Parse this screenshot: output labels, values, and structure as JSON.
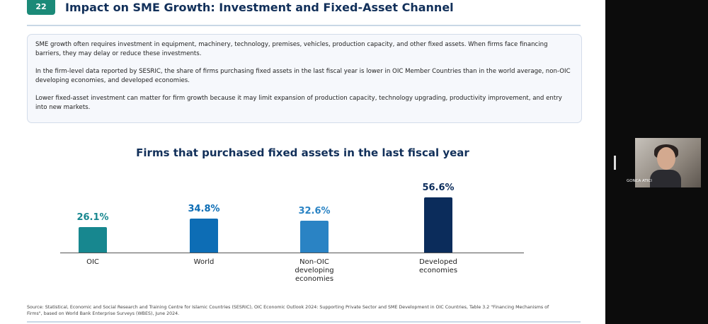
{
  "slide": {
    "number": "22",
    "title": "Impact on SME Growth: Investment and Fixed-Asset Channel",
    "paragraphs": [
      "SME growth often requires investment in equipment, machinery, technology, premises, vehicles, production capacity, and other fixed assets. When firms face financing barriers, they may delay or reduce these investments.",
      "In the firm-level data reported by SESRIC, the share of firms purchasing fixed assets in the last fiscal year is lower in OIC Member Countries than in the world average, non-OIC developing economies, and developed economies.",
      "Lower fixed-asset investment can matter for firm growth because it may limit expansion of production capacity, technology upgrading, productivity improvement, and entry into new markets."
    ],
    "source": "Source: Statistical, Economic and Social Research and Training Centre for Islamic Countries (SESRIC), OIC Economic Outlook 2024: Supporting Private Sector and SME Development in OIC Countries, Table 3.2 \"Financing Mechanisms of Firms\", based on World Bank Enterprise Surveys (WBES), June 2024."
  },
  "chart_data": {
    "type": "bar",
    "title": "Firms that purchased fixed assets in the last fiscal year",
    "categories": [
      "OIC",
      "World",
      "Non-OIC developing economies",
      "Developed economies"
    ],
    "values": [
      26.1,
      34.8,
      32.6,
      56.6
    ],
    "value_labels": [
      "26.1%",
      "34.8%",
      "32.6%",
      "56.6%"
    ],
    "colors": [
      "#17878f",
      "#0d6db5",
      "#2a83c4",
      "#0b2c5b"
    ]
  },
  "participant": {
    "name": "GONCA ATICI"
  }
}
